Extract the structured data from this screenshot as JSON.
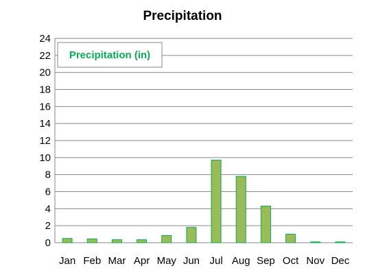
{
  "chart_data": {
    "type": "bar",
    "title": "Precipitation",
    "xlabel": "",
    "ylabel": "",
    "categories": [
      "Jan",
      "Feb",
      "Mar",
      "Apr",
      "May",
      "Jun",
      "Jul",
      "Aug",
      "Sep",
      "Oct",
      "Nov",
      "Dec"
    ],
    "series": [
      {
        "name": "Precipitation (in)",
        "values": [
          0.5,
          0.45,
          0.35,
          0.35,
          0.85,
          1.8,
          9.7,
          7.8,
          4.3,
          1.0,
          0.1,
          0.1
        ]
      }
    ],
    "ylim": [
      0,
      24
    ],
    "yticks": [
      0,
      2,
      4,
      6,
      8,
      10,
      12,
      14,
      16,
      18,
      20,
      22,
      24
    ],
    "grid": true,
    "legend": "top-left",
    "colors": {
      "bar_fill": "#9bbb59",
      "bar_stroke": "#00b050",
      "legend_text": "#00b050",
      "grid": "#868686"
    }
  }
}
